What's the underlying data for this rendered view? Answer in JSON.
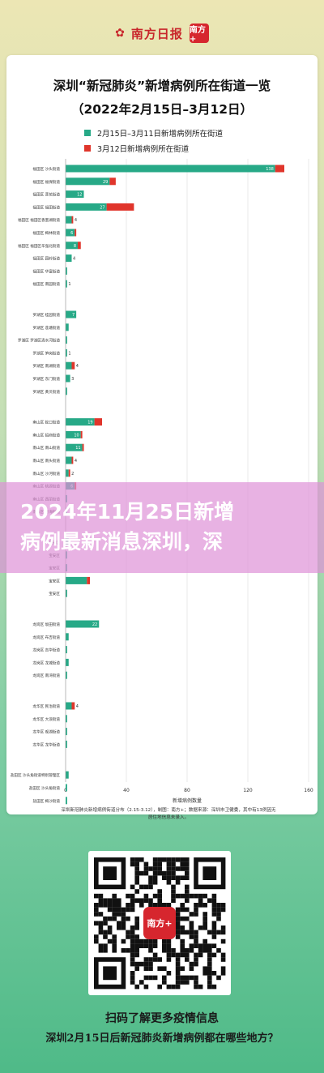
{
  "header": {
    "logo_text": "南方日报",
    "app_badge": "南方+"
  },
  "chart_data": {
    "type": "bar",
    "title": "深圳“新冠肺炎”新增病例所在街道一览",
    "subtitle": "（2022年2月15日–3月12日）",
    "xlabel": "新增病例数量",
    "xlim": [
      0,
      160
    ],
    "x_ticks": [
      0,
      40,
      80,
      120,
      160
    ],
    "grid": true,
    "legend_position": "top",
    "colors": {
      "series1": "#27a987",
      "series2": "#e0352b"
    },
    "series": [
      {
        "name": "2月15日–3月11日新增病例所在街道"
      },
      {
        "name": "3月12日新增病例所在街道"
      }
    ],
    "rows": [
      {
        "district": "福田区",
        "street": "沙头街道",
        "v1": 138,
        "v2": 6,
        "label": "138"
      },
      {
        "district": "福田区",
        "street": "福保街道",
        "v1": 29,
        "v2": 4,
        "label": "29"
      },
      {
        "district": "福田区",
        "street": "莲花街道",
        "v1": 12,
        "v2": 0,
        "label": "12"
      },
      {
        "district": "福田区",
        "street": "福田街道",
        "v1": 27,
        "v2": 18,
        "label": "27"
      },
      {
        "district": "福田区",
        "street": "福田区香蜜湖街道",
        "v1": 4,
        "v2": 1,
        "label": "4"
      },
      {
        "district": "福田区",
        "street": "梅林街道",
        "v1": 6,
        "v2": 1,
        "label": "6"
      },
      {
        "district": "福田区",
        "street": "福田区华强北街道",
        "v1": 8,
        "v2": 2,
        "label": "8"
      },
      {
        "district": "福田区",
        "street": "园岭街道",
        "v1": 4,
        "v2": 0,
        "label": "4"
      },
      {
        "district": "福田区",
        "street": "华富街道",
        "v1": 1,
        "v2": 0,
        "label": ""
      },
      {
        "district": "福田区",
        "street": "南园街道",
        "v1": 1,
        "v2": 0,
        "label": "1"
      },
      {
        "district": "罗湖区",
        "street": "桂园街道",
        "v1": 7,
        "v2": 0,
        "label": "7"
      },
      {
        "district": "罗湖区",
        "street": "莲塘街道",
        "v1": 2,
        "v2": 0,
        "label": ""
      },
      {
        "district": "罗湖区",
        "street": "罗湖区清水河街道",
        "v1": 1,
        "v2": 0,
        "label": ""
      },
      {
        "district": "罗湖区",
        "street": "笋岗街道",
        "v1": 1,
        "v2": 0,
        "label": "1"
      },
      {
        "district": "罗湖区",
        "street": "南湖街道",
        "v1": 4,
        "v2": 2,
        "label": "4"
      },
      {
        "district": "罗湖区",
        "street": "东门街道",
        "v1": 3,
        "v2": 0,
        "label": "3"
      },
      {
        "district": "罗湖区",
        "street": "黄贝街道",
        "v1": 1,
        "v2": 0,
        "label": ""
      },
      {
        "district": "南山区",
        "street": "蛇口街道",
        "v1": 19,
        "v2": 5,
        "label": "19"
      },
      {
        "district": "南山区",
        "street": "招商街道",
        "v1": 10,
        "v2": 1,
        "label": "10"
      },
      {
        "district": "南山区",
        "street": "南山街道",
        "v1": 11,
        "v2": 1,
        "label": "11"
      },
      {
        "district": "南山区",
        "street": "南头街道",
        "v1": 4,
        "v2": 1,
        "label": "4"
      },
      {
        "district": "南山区",
        "street": "沙河街道",
        "v1": 2,
        "v2": 1,
        "label": "2"
      },
      {
        "district": "南山区",
        "street": "桃源街道",
        "v1": 6,
        "v2": 1,
        "label": "6"
      },
      {
        "district": "南山区",
        "street": "西丽街道",
        "v1": 1,
        "v2": 0,
        "label": ""
      },
      {
        "district": "南山区",
        "street": "粤海街道",
        "v1": 1,
        "v2": 0,
        "label": ""
      },
      {
        "district": "宝安区",
        "street": "",
        "v1": 2,
        "v2": 0,
        "label": ""
      },
      {
        "district": "宝安区",
        "street": "",
        "v1": 1,
        "v2": 0,
        "label": ""
      },
      {
        "district": "宝安区",
        "street": "",
        "v1": 1,
        "v2": 0,
        "label": ""
      },
      {
        "district": "宝安区",
        "street": "",
        "v1": 14,
        "v2": 2,
        "label": ""
      },
      {
        "district": "宝安区",
        "street": "",
        "v1": 1,
        "v2": 0,
        "label": ""
      },
      {
        "district": "龙岗区",
        "street": "坂田街道",
        "v1": 22,
        "v2": 0,
        "label": "22"
      },
      {
        "district": "龙岗区",
        "street": "布吉街道",
        "v1": 2,
        "v2": 0,
        "label": ""
      },
      {
        "district": "龙岗区",
        "street": "吉华街道",
        "v1": 1,
        "v2": 0,
        "label": ""
      },
      {
        "district": "龙岗区",
        "street": "龙城街道",
        "v1": 2,
        "v2": 0,
        "label": ""
      },
      {
        "district": "龙岗区",
        "street": "南湾街道",
        "v1": 1,
        "v2": 0,
        "label": ""
      },
      {
        "district": "龙华区",
        "street": "民治街道",
        "v1": 4,
        "v2": 2,
        "label": "4"
      },
      {
        "district": "龙华区",
        "street": "大浪街道",
        "v1": 1,
        "v2": 0,
        "label": ""
      },
      {
        "district": "龙华区",
        "street": "观湖街道",
        "v1": 1,
        "v2": 0,
        "label": ""
      },
      {
        "district": "龙华区",
        "street": "龙华街道",
        "v1": 1,
        "v2": 0,
        "label": ""
      },
      {
        "district": "盐田区",
        "street": "沙头角街道特别管理区",
        "v1": 2,
        "v2": 0,
        "label": ""
      },
      {
        "district": "盐田区",
        "street": "沙头角街道",
        "v1": 1,
        "v2": 0,
        "label": ""
      },
      {
        "district": "盐田区",
        "street": "梅沙街道",
        "v1": 1,
        "v2": 0,
        "label": ""
      },
      {
        "district": "坪山区",
        "street": "龙田街道",
        "v1": 1,
        "v2": 0,
        "label": ""
      }
    ],
    "caption_line1": "深圳新冠肺炎新增病例街道分布（2.15-3.12），制图：南方+；数据来源：深圳市卫健委，其中有13例因无",
    "caption_line2": "居住地信息未录入。"
  },
  "banner": {
    "line1": "2024年11月25日新增",
    "line2": "病例最新消息深圳，深"
  },
  "qr": {
    "center_label": "南方+"
  },
  "footer": {
    "scan_text": "扫码了解更多疫情信息",
    "question": "深圳2月15日后新冠肺炎新增病例都在哪些地方？"
  }
}
